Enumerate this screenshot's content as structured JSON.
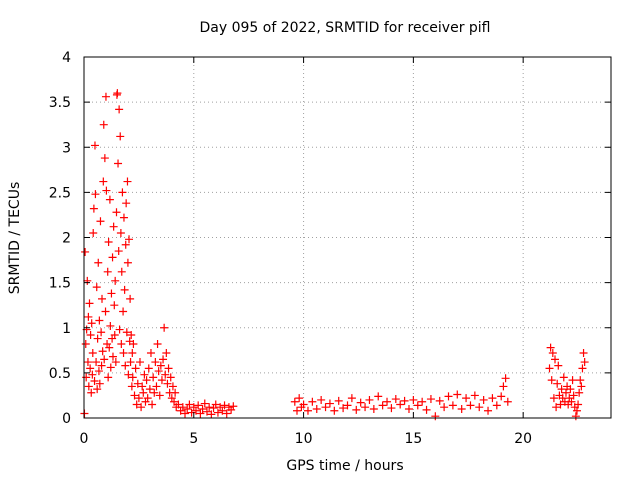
{
  "chart_data": {
    "type": "scatter",
    "title": "Day 095 of 2022, SRMTID for receiver pifl",
    "xlabel": "GPS time / hours",
    "ylabel": "SRMTID / TECUs",
    "xlim": [
      0,
      24
    ],
    "ylim": [
      0,
      4
    ],
    "xticks": [
      0,
      5,
      10,
      15,
      20
    ],
    "yticks": [
      0,
      0.5,
      1,
      1.5,
      2,
      2.5,
      3,
      3.5,
      4
    ],
    "xtick_labels": [
      "0",
      "5",
      "10",
      "15",
      "20"
    ],
    "ytick_labels": [
      "0",
      "0.5",
      "1",
      "1.5",
      "2",
      "2.5",
      "3",
      "3.5",
      "4"
    ],
    "grid": true,
    "marker": "+",
    "color": "#ff0000",
    "series": [
      {
        "name": "SRMTID",
        "points": [
          [
            0.02,
            0.05
          ],
          [
            0.05,
            1.84
          ],
          [
            0.08,
            0.82
          ],
          [
            0.1,
            0.45
          ],
          [
            0.12,
            0.98
          ],
          [
            0.15,
            1.52
          ],
          [
            0.18,
            0.62
          ],
          [
            0.2,
            1.12
          ],
          [
            0.22,
            0.35
          ],
          [
            0.25,
            1.27
          ],
          [
            0.28,
            0.55
          ],
          [
            0.3,
            0.92
          ],
          [
            0.33,
            0.28
          ],
          [
            0.35,
            1.05
          ],
          [
            0.38,
            0.48
          ],
          [
            0.4,
            0.72
          ],
          [
            0.42,
            2.05
          ],
          [
            0.45,
            2.32
          ],
          [
            0.48,
            0.41
          ],
          [
            0.5,
            3.02
          ],
          [
            0.52,
            2.48
          ],
          [
            0.55,
            0.62
          ],
          [
            0.58,
            1.45
          ],
          [
            0.6,
            0.32
          ],
          [
            0.62,
            0.88
          ],
          [
            0.65,
            1.72
          ],
          [
            0.68,
            0.52
          ],
          [
            0.7,
            1.08
          ],
          [
            0.72,
            0.38
          ],
          [
            0.75,
            2.18
          ],
          [
            0.78,
            0.95
          ],
          [
            0.8,
            0.58
          ],
          [
            0.82,
            1.32
          ],
          [
            0.85,
            0.74
          ],
          [
            0.88,
            2.62
          ],
          [
            0.9,
            3.25
          ],
          [
            0.92,
            0.65
          ],
          [
            0.95,
            2.88
          ],
          [
            0.98,
            1.18
          ],
          [
            1.0,
            3.56
          ],
          [
            1.02,
            2.52
          ],
          [
            1.05,
            0.82
          ],
          [
            1.08,
            1.62
          ],
          [
            1.1,
            0.45
          ],
          [
            1.12,
            1.95
          ],
          [
            1.15,
            0.78
          ],
          [
            1.18,
            2.42
          ],
          [
            1.2,
            1.02
          ],
          [
            1.22,
            0.56
          ],
          [
            1.25,
            1.38
          ],
          [
            1.28,
            0.88
          ],
          [
            1.3,
            1.78
          ],
          [
            1.32,
            0.68
          ],
          [
            1.35,
            2.12
          ],
          [
            1.38,
            1.25
          ],
          [
            1.4,
            0.92
          ],
          [
            1.42,
            1.52
          ],
          [
            1.45,
            0.62
          ],
          [
            1.48,
            2.28
          ],
          [
            1.5,
            3.58
          ],
          [
            1.52,
            3.6
          ],
          [
            1.55,
            2.82
          ],
          [
            1.58,
            1.85
          ],
          [
            1.6,
            3.42
          ],
          [
            1.62,
            0.98
          ],
          [
            1.65,
            3.12
          ],
          [
            1.68,
            2.05
          ],
          [
            1.7,
            0.82
          ],
          [
            1.72,
            1.62
          ],
          [
            1.75,
            2.5
          ],
          [
            1.78,
            1.18
          ],
          [
            1.8,
            0.72
          ],
          [
            1.82,
            2.22
          ],
          [
            1.85,
            1.42
          ],
          [
            1.88,
            0.58
          ],
          [
            1.9,
            1.92
          ],
          [
            1.92,
            2.38
          ],
          [
            1.95,
            0.95
          ],
          [
            1.98,
            2.62
          ],
          [
            2.0,
            1.72
          ],
          [
            2.02,
            0.48
          ],
          [
            2.05,
            1.98
          ],
          [
            2.08,
            0.85
          ],
          [
            2.1,
            1.32
          ],
          [
            2.12,
            0.62
          ],
          [
            2.15,
            0.92
          ],
          [
            2.18,
            0.35
          ],
          [
            2.2,
            0.72
          ],
          [
            2.22,
            0.45
          ],
          [
            2.25,
            0.82
          ],
          [
            2.3,
            0.25
          ],
          [
            2.35,
            0.55
          ],
          [
            2.4,
            0.15
          ],
          [
            2.45,
            0.38
          ],
          [
            2.5,
            0.22
          ],
          [
            2.55,
            0.62
          ],
          [
            2.6,
            0.12
          ],
          [
            2.65,
            0.35
          ],
          [
            2.7,
            0.28
          ],
          [
            2.75,
            0.48
          ],
          [
            2.8,
            0.18
          ],
          [
            2.85,
            0.42
          ],
          [
            2.9,
            0.22
          ],
          [
            2.95,
            0.55
          ],
          [
            3.0,
            0.32
          ],
          [
            3.05,
            0.72
          ],
          [
            3.1,
            0.15
          ],
          [
            3.15,
            0.45
          ],
          [
            3.2,
            0.28
          ],
          [
            3.25,
            0.62
          ],
          [
            3.3,
            0.35
          ],
          [
            3.35,
            0.82
          ],
          [
            3.4,
            0.52
          ],
          [
            3.45,
            0.25
          ],
          [
            3.5,
            0.58
          ],
          [
            3.55,
            0.42
          ],
          [
            3.6,
            0.65
          ],
          [
            3.65,
            1.0
          ],
          [
            3.7,
            0.48
          ],
          [
            3.75,
            0.72
          ],
          [
            3.8,
            0.38
          ],
          [
            3.85,
            0.55
          ],
          [
            3.9,
            0.28
          ],
          [
            3.95,
            0.45
          ],
          [
            4.0,
            0.22
          ],
          [
            4.05,
            0.35
          ],
          [
            4.1,
            0.18
          ],
          [
            4.15,
            0.28
          ],
          [
            4.2,
            0.12
          ],
          [
            4.3,
            0.15
          ],
          [
            4.4,
            0.08
          ],
          [
            4.5,
            0.12
          ],
          [
            4.6,
            0.05
          ],
          [
            4.7,
            0.1
          ],
          [
            4.8,
            0.15
          ],
          [
            4.9,
            0.06
          ],
          [
            5.0,
            0.12
          ],
          [
            5.1,
            0.08
          ],
          [
            5.2,
            0.14
          ],
          [
            5.3,
            0.05
          ],
          [
            5.4,
            0.1
          ],
          [
            5.5,
            0.16
          ],
          [
            5.6,
            0.07
          ],
          [
            5.7,
            0.12
          ],
          [
            5.8,
            0.04
          ],
          [
            5.9,
            0.11
          ],
          [
            6.0,
            0.15
          ],
          [
            6.1,
            0.06
          ],
          [
            6.2,
            0.12
          ],
          [
            6.3,
            0.08
          ],
          [
            6.4,
            0.14
          ],
          [
            6.5,
            0.05
          ],
          [
            6.6,
            0.12
          ],
          [
            6.7,
            0.09
          ],
          [
            6.8,
            0.13
          ],
          [
            9.6,
            0.18
          ],
          [
            9.7,
            0.08
          ],
          [
            9.8,
            0.22
          ],
          [
            9.9,
            0.12
          ],
          [
            10.0,
            0.15
          ],
          [
            10.2,
            0.08
          ],
          [
            10.4,
            0.18
          ],
          [
            10.6,
            0.1
          ],
          [
            10.8,
            0.2
          ],
          [
            11.0,
            0.12
          ],
          [
            11.2,
            0.16
          ],
          [
            11.4,
            0.08
          ],
          [
            11.6,
            0.19
          ],
          [
            11.8,
            0.11
          ],
          [
            12.0,
            0.14
          ],
          [
            12.2,
            0.22
          ],
          [
            12.4,
            0.09
          ],
          [
            12.6,
            0.17
          ],
          [
            12.8,
            0.12
          ],
          [
            13.0,
            0.2
          ],
          [
            13.2,
            0.1
          ],
          [
            13.4,
            0.24
          ],
          [
            13.6,
            0.14
          ],
          [
            13.8,
            0.18
          ],
          [
            14.0,
            0.11
          ],
          [
            14.2,
            0.21
          ],
          [
            14.4,
            0.15
          ],
          [
            14.6,
            0.19
          ],
          [
            14.8,
            0.1
          ],
          [
            15.0,
            0.2
          ],
          [
            15.2,
            0.14
          ],
          [
            15.4,
            0.18
          ],
          [
            15.6,
            0.09
          ],
          [
            15.8,
            0.21
          ],
          [
            16.0,
            0.02
          ],
          [
            16.2,
            0.19
          ],
          [
            16.4,
            0.12
          ],
          [
            16.6,
            0.24
          ],
          [
            16.8,
            0.14
          ],
          [
            17.0,
            0.26
          ],
          [
            17.2,
            0.1
          ],
          [
            17.4,
            0.22
          ],
          [
            17.6,
            0.14
          ],
          [
            17.8,
            0.25
          ],
          [
            18.0,
            0.12
          ],
          [
            18.2,
            0.2
          ],
          [
            18.4,
            0.08
          ],
          [
            18.6,
            0.22
          ],
          [
            18.8,
            0.14
          ],
          [
            19.0,
            0.24
          ],
          [
            19.1,
            0.35
          ],
          [
            19.2,
            0.44
          ],
          [
            19.3,
            0.18
          ],
          [
            21.2,
            0.55
          ],
          [
            21.25,
            0.78
          ],
          [
            21.3,
            0.42
          ],
          [
            21.35,
            0.72
          ],
          [
            21.4,
            0.22
          ],
          [
            21.45,
            0.65
          ],
          [
            21.5,
            0.12
          ],
          [
            21.55,
            0.38
          ],
          [
            21.6,
            0.58
          ],
          [
            21.65,
            0.25
          ],
          [
            21.7,
            0.15
          ],
          [
            21.75,
            0.32
          ],
          [
            21.8,
            0.22
          ],
          [
            21.85,
            0.45
          ],
          [
            21.9,
            0.18
          ],
          [
            21.95,
            0.28
          ],
          [
            22.0,
            0.35
          ],
          [
            22.05,
            0.15
          ],
          [
            22.1,
            0.22
          ],
          [
            22.15,
            0.32
          ],
          [
            22.2,
            0.18
          ],
          [
            22.25,
            0.42
          ],
          [
            22.3,
            0.25
          ],
          [
            22.35,
            0.12
          ],
          [
            22.4,
            0.02
          ],
          [
            22.45,
            0.08
          ],
          [
            22.5,
            0.15
          ],
          [
            22.55,
            0.28
          ],
          [
            22.6,
            0.42
          ],
          [
            22.65,
            0.35
          ],
          [
            22.7,
            0.55
          ],
          [
            22.75,
            0.72
          ],
          [
            22.8,
            0.62
          ]
        ]
      }
    ]
  }
}
